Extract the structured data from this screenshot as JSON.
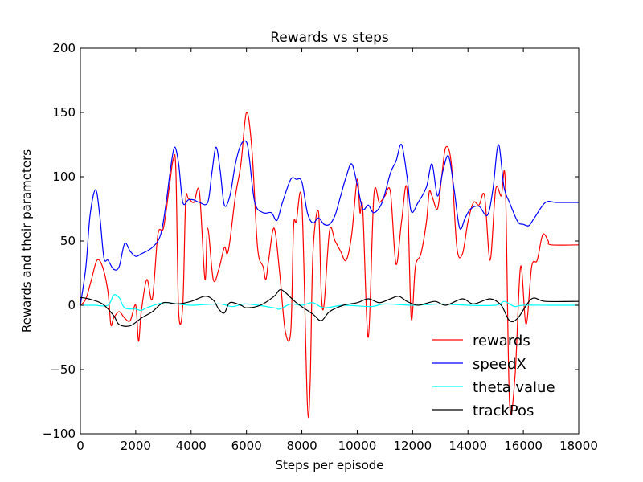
{
  "chart_data": {
    "type": "line",
    "title": "Rewards vs steps",
    "xlabel": "Steps per episode",
    "ylabel": "Rewards and their parameters",
    "xlim": [
      0,
      18000
    ],
    "ylim": [
      -100,
      200
    ],
    "xticks": [
      0,
      2000,
      4000,
      6000,
      8000,
      10000,
      12000,
      14000,
      16000,
      18000
    ],
    "yticks": [
      -100,
      -50,
      0,
      50,
      100,
      150,
      200
    ],
    "xtick_labels": [
      "0",
      "2000",
      "4000",
      "6000",
      "8000",
      "10000",
      "12000",
      "14000",
      "16000",
      "18000"
    ],
    "ytick_labels": [
      "−100",
      "−50",
      "0",
      "50",
      "100",
      "150",
      "200"
    ],
    "grid": false,
    "legend_position": "bottom-right",
    "series": [
      {
        "name": "rewards",
        "color": "#ff0000",
        "x": [
          0,
          200,
          400,
          600,
          800,
          1000,
          1100,
          1200,
          1400,
          1600,
          1800,
          2000,
          2100,
          2200,
          2400,
          2600,
          2800,
          3000,
          3200,
          3350,
          3450,
          3550,
          3700,
          3800,
          3900,
          4100,
          4300,
          4500,
          4600,
          4800,
          5000,
          5200,
          5300,
          5400,
          5600,
          5800,
          6000,
          6200,
          6400,
          6600,
          6700,
          6800,
          7000,
          7200,
          7400,
          7600,
          7700,
          7800,
          8000,
          8200,
          8300,
          8400,
          8600,
          8700,
          8800,
          9000,
          9200,
          9400,
          9600,
          9800,
          10000,
          10100,
          10200,
          10400,
          10600,
          10800,
          11000,
          11200,
          11400,
          11600,
          11800,
          11950,
          12100,
          12300,
          12500,
          12600,
          12700,
          12900,
          13050,
          13200,
          13400,
          13600,
          13800,
          14000,
          14200,
          14400,
          14600,
          14800,
          15000,
          15200,
          15350,
          15500,
          15700,
          15900,
          16100,
          16300,
          16500,
          16700,
          16900,
          17000,
          18000
        ],
        "y": [
          0,
          5,
          20,
          35,
          30,
          10,
          -15,
          -10,
          -5,
          -10,
          -12,
          0,
          -28,
          -5,
          20,
          5,
          55,
          60,
          90,
          113,
          105,
          -5,
          0,
          80,
          83,
          80,
          88,
          20,
          60,
          20,
          28,
          45,
          40,
          50,
          85,
          110,
          150,
          120,
          45,
          30,
          20,
          35,
          60,
          25,
          -20,
          -20,
          60,
          65,
          80,
          -77,
          -60,
          40,
          73,
          10,
          0,
          58,
          50,
          42,
          35,
          55,
          98,
          72,
          75,
          -25,
          85,
          80,
          85,
          88,
          32,
          65,
          90,
          -10,
          30,
          40,
          65,
          88,
          85,
          75,
          100,
          123,
          110,
          45,
          40,
          65,
          80,
          78,
          85,
          35,
          90,
          85,
          95,
          -75,
          -55,
          30,
          -15,
          30,
          35,
          55,
          50,
          47,
          47
        ]
      },
      {
        "name": "speedX",
        "color": "#0000ff",
        "x": [
          0,
          200,
          350,
          550,
          700,
          850,
          1000,
          1200,
          1400,
          1600,
          1800,
          2000,
          2200,
          2600,
          2900,
          3100,
          3250,
          3400,
          3550,
          3700,
          3900,
          4100,
          4300,
          4600,
          4750,
          4900,
          5050,
          5200,
          5400,
          5600,
          5800,
          6000,
          6100,
          6300,
          6600,
          6900,
          7100,
          7300,
          7600,
          7800,
          8000,
          8200,
          8400,
          8600,
          8800,
          9000,
          9200,
          9400,
          9600,
          9800,
          10000,
          10200,
          10400,
          10600,
          10900,
          11200,
          11400,
          11600,
          11800,
          11950,
          12200,
          12500,
          12700,
          12900,
          13100,
          13300,
          13500,
          13700,
          13900,
          14100,
          14400,
          14700,
          14900,
          15100,
          15300,
          15500,
          15800,
          16000,
          16200,
          16400,
          16800,
          17200,
          18000
        ],
        "y": [
          0,
          30,
          70,
          90,
          70,
          37,
          35,
          28,
          30,
          48,
          42,
          38,
          40,
          45,
          55,
          80,
          105,
          123,
          110,
          80,
          82,
          82,
          80,
          80,
          103,
          123,
          105,
          78,
          85,
          110,
          125,
          127,
          115,
          80,
          72,
          72,
          66,
          80,
          98,
          98,
          96,
          72,
          64,
          68,
          63,
          63,
          70,
          85,
          100,
          110,
          94,
          75,
          78,
          72,
          80,
          103,
          112,
          125,
          100,
          73,
          80,
          92,
          110,
          85,
          105,
          116,
          90,
          60,
          68,
          75,
          77,
          70,
          90,
          125,
          92,
          80,
          65,
          63,
          62,
          68,
          80,
          80,
          80
        ]
      },
      {
        "name": "theta value",
        "color": "#00ffff",
        "x": [
          0,
          500,
          1000,
          1200,
          1400,
          1600,
          2000,
          2200,
          2400,
          3000,
          3500,
          4000,
          5000,
          5500,
          6000,
          7000,
          7200,
          7600,
          8000,
          8400,
          8800,
          9500,
          10500,
          11000,
          12000,
          13000,
          14000,
          15000,
          15300,
          15500,
          15700,
          16000,
          17000,
          18000
        ],
        "y": [
          0,
          0,
          0,
          8,
          6,
          -2,
          -3,
          -4,
          -2,
          2,
          1,
          0,
          1,
          -1,
          1,
          -2,
          -3,
          1,
          0,
          2,
          -2,
          0,
          -1,
          1,
          0,
          1,
          0,
          0,
          3,
          1,
          -1,
          0,
          0,
          0
        ]
      },
      {
        "name": "trackPos",
        "color": "#000000",
        "x": [
          0,
          300,
          800,
          1200,
          1400,
          1800,
          2200,
          2600,
          3000,
          3500,
          4000,
          4500,
          4800,
          5000,
          5200,
          5400,
          5800,
          6000,
          6500,
          7000,
          7200,
          7400,
          7800,
          8400,
          8700,
          9000,
          9500,
          10000,
          10400,
          10800,
          11200,
          11500,
          11800,
          12200,
          12800,
          13200,
          13800,
          14200,
          14800,
          15200,
          15500,
          15800,
          16300,
          16800,
          18000
        ],
        "y": [
          6,
          5,
          1,
          -8,
          -15,
          -16,
          -10,
          -5,
          2,
          1,
          3,
          7,
          4,
          -3,
          -6,
          2,
          0,
          -2,
          0,
          7,
          12,
          10,
          2,
          -7,
          -12,
          -5,
          0,
          2,
          5,
          2,
          5,
          7,
          3,
          0,
          3,
          0,
          5,
          1,
          5,
          0,
          -12,
          -10,
          5,
          3,
          3
        ]
      }
    ]
  }
}
